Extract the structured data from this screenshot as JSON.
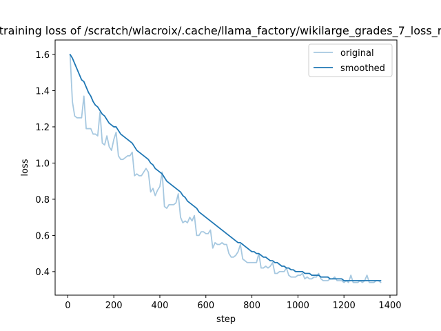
{
  "chart_data": {
    "type": "line",
    "title": "training loss of /scratch/wlacroix/.cache/llama_factory/wikilarge_grades_7_loss_r",
    "xlabel": "step",
    "ylabel": "loss",
    "xlim": [
      -55,
      1430
    ],
    "ylim": [
      0.27,
      1.68
    ],
    "xticks": [
      0,
      200,
      400,
      600,
      800,
      1000,
      1200,
      1400
    ],
    "yticks": [
      0.4,
      0.6,
      0.8,
      1.0,
      1.2,
      1.4,
      1.6
    ],
    "ytick_labels": [
      "0.4",
      "0.6",
      "0.8",
      "1.0",
      "1.2",
      "1.4",
      "1.6"
    ],
    "grid": false,
    "legend_position": "upper-right",
    "series": [
      {
        "name": "original",
        "color": "#a6c8e0",
        "x": [
          10,
          20,
          30,
          40,
          50,
          60,
          70,
          80,
          90,
          100,
          110,
          120,
          130,
          140,
          150,
          160,
          170,
          180,
          190,
          200,
          210,
          220,
          230,
          240,
          250,
          260,
          270,
          280,
          290,
          300,
          310,
          320,
          330,
          340,
          350,
          360,
          370,
          380,
          390,
          400,
          410,
          420,
          430,
          440,
          450,
          460,
          470,
          480,
          490,
          500,
          510,
          520,
          530,
          540,
          550,
          560,
          570,
          580,
          590,
          600,
          610,
          620,
          630,
          640,
          650,
          660,
          670,
          680,
          690,
          700,
          710,
          720,
          730,
          740,
          750,
          760,
          770,
          780,
          790,
          800,
          810,
          820,
          830,
          840,
          850,
          860,
          870,
          880,
          890,
          900,
          910,
          920,
          930,
          940,
          950,
          960,
          970,
          980,
          990,
          1000,
          1010,
          1020,
          1030,
          1040,
          1050,
          1060,
          1070,
          1080,
          1090,
          1100,
          1110,
          1120,
          1130,
          1140,
          1150,
          1160,
          1170,
          1180,
          1190,
          1200,
          1210,
          1220,
          1230,
          1240,
          1250,
          1260,
          1270,
          1280,
          1290,
          1300,
          1310,
          1320,
          1330,
          1340,
          1350,
          1360
        ],
        "values": [
          1.6,
          1.34,
          1.26,
          1.25,
          1.25,
          1.25,
          1.37,
          1.19,
          1.19,
          1.19,
          1.16,
          1.16,
          1.15,
          1.28,
          1.11,
          1.1,
          1.15,
          1.09,
          1.07,
          1.13,
          1.17,
          1.04,
          1.02,
          1.02,
          1.03,
          1.04,
          1.04,
          1.06,
          0.93,
          0.94,
          0.93,
          0.93,
          0.95,
          0.97,
          0.95,
          0.84,
          0.86,
          0.82,
          0.85,
          0.87,
          0.95,
          0.76,
          0.75,
          0.77,
          0.77,
          0.77,
          0.78,
          0.83,
          0.7,
          0.67,
          0.68,
          0.67,
          0.7,
          0.68,
          0.71,
          0.6,
          0.6,
          0.62,
          0.62,
          0.61,
          0.61,
          0.63,
          0.53,
          0.56,
          0.55,
          0.55,
          0.56,
          0.55,
          0.55,
          0.5,
          0.48,
          0.48,
          0.49,
          0.51,
          0.55,
          0.47,
          0.46,
          0.45,
          0.45,
          0.45,
          0.45,
          0.45,
          0.5,
          0.42,
          0.42,
          0.43,
          0.42,
          0.43,
          0.45,
          0.39,
          0.39,
          0.4,
          0.4,
          0.4,
          0.42,
          0.38,
          0.37,
          0.37,
          0.37,
          0.38,
          0.38,
          0.39,
          0.36,
          0.37,
          0.36,
          0.36,
          0.37,
          0.37,
          0.39,
          0.36,
          0.35,
          0.35,
          0.35,
          0.36,
          0.36,
          0.37,
          0.35,
          0.35,
          0.35,
          0.34,
          0.35,
          0.34,
          0.38,
          0.34,
          0.34,
          0.34,
          0.35,
          0.34,
          0.35,
          0.38,
          0.34,
          0.34,
          0.34,
          0.35,
          0.35,
          0.34
        ]
      },
      {
        "name": "smoothed",
        "color": "#1f77b4",
        "x": [
          10,
          20,
          30,
          40,
          50,
          60,
          70,
          80,
          90,
          100,
          110,
          120,
          130,
          140,
          150,
          160,
          170,
          180,
          190,
          200,
          210,
          220,
          230,
          240,
          250,
          260,
          270,
          280,
          290,
          300,
          310,
          320,
          330,
          340,
          350,
          360,
          370,
          380,
          390,
          400,
          410,
          420,
          430,
          440,
          450,
          460,
          470,
          480,
          490,
          500,
          510,
          520,
          530,
          540,
          550,
          560,
          570,
          580,
          590,
          600,
          610,
          620,
          630,
          640,
          650,
          660,
          670,
          680,
          690,
          700,
          710,
          720,
          730,
          740,
          750,
          760,
          770,
          780,
          790,
          800,
          810,
          820,
          830,
          840,
          850,
          860,
          870,
          880,
          890,
          900,
          910,
          920,
          930,
          940,
          950,
          960,
          970,
          980,
          990,
          1000,
          1010,
          1020,
          1030,
          1040,
          1050,
          1060,
          1070,
          1080,
          1090,
          1100,
          1110,
          1120,
          1130,
          1140,
          1150,
          1160,
          1170,
          1180,
          1190,
          1200,
          1210,
          1220,
          1230,
          1240,
          1250,
          1260,
          1270,
          1280,
          1290,
          1300,
          1310,
          1320,
          1330,
          1340,
          1350,
          1360
        ],
        "values": [
          1.6,
          1.58,
          1.55,
          1.52,
          1.49,
          1.46,
          1.45,
          1.42,
          1.39,
          1.37,
          1.34,
          1.32,
          1.31,
          1.29,
          1.27,
          1.26,
          1.24,
          1.22,
          1.21,
          1.2,
          1.2,
          1.18,
          1.16,
          1.15,
          1.14,
          1.13,
          1.12,
          1.11,
          1.09,
          1.07,
          1.06,
          1.05,
          1.04,
          1.03,
          1.02,
          1.0,
          0.99,
          0.97,
          0.96,
          0.95,
          0.94,
          0.92,
          0.9,
          0.89,
          0.88,
          0.87,
          0.86,
          0.85,
          0.84,
          0.82,
          0.81,
          0.79,
          0.78,
          0.77,
          0.76,
          0.75,
          0.73,
          0.72,
          0.71,
          0.7,
          0.69,
          0.68,
          0.67,
          0.66,
          0.65,
          0.64,
          0.63,
          0.62,
          0.61,
          0.6,
          0.59,
          0.58,
          0.57,
          0.56,
          0.56,
          0.55,
          0.54,
          0.53,
          0.52,
          0.51,
          0.51,
          0.5,
          0.5,
          0.49,
          0.48,
          0.48,
          0.47,
          0.46,
          0.46,
          0.45,
          0.45,
          0.44,
          0.43,
          0.43,
          0.42,
          0.42,
          0.41,
          0.41,
          0.4,
          0.4,
          0.4,
          0.4,
          0.39,
          0.39,
          0.39,
          0.38,
          0.38,
          0.38,
          0.38,
          0.37,
          0.37,
          0.37,
          0.37,
          0.36,
          0.36,
          0.36,
          0.36,
          0.36,
          0.36,
          0.35,
          0.35,
          0.35,
          0.35,
          0.35,
          0.35,
          0.35,
          0.35,
          0.35,
          0.35,
          0.35,
          0.35,
          0.35,
          0.35,
          0.35,
          0.35,
          0.35
        ]
      }
    ]
  }
}
